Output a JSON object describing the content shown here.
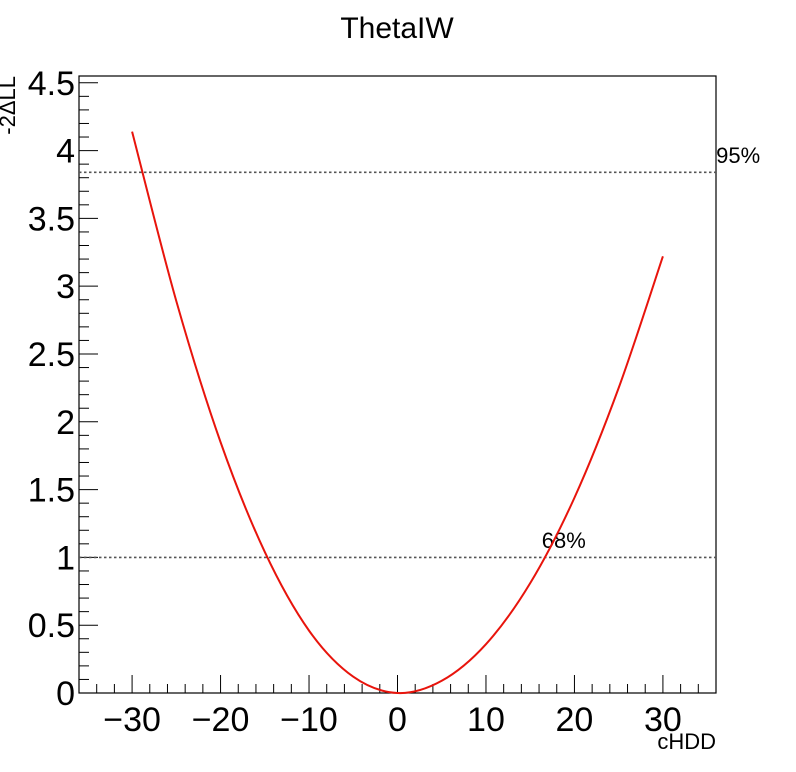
{
  "chart_data": {
    "type": "line",
    "title": "ThetaIW",
    "xlabel": "cHDD",
    "ylabel": "-2ΔLL",
    "xlim": [
      -36,
      36
    ],
    "ylim": [
      0,
      4.55
    ],
    "x_ticks": [
      -30,
      -20,
      -10,
      0,
      10,
      20,
      30
    ],
    "x_tick_labels": [
      "−30",
      "−20",
      "−10",
      "0",
      "10",
      "20",
      "30"
    ],
    "y_ticks": [
      0,
      0.5,
      1,
      1.5,
      2,
      2.5,
      3,
      3.5,
      4,
      4.5
    ],
    "y_tick_labels": [
      "0",
      "0.5",
      "1",
      "1.5",
      "2",
      "2.5",
      "3",
      "3.5",
      "4",
      "4.5"
    ],
    "grid": false,
    "series": [
      {
        "color": "#e8140c",
        "x": [
          -30,
          -25,
          -20,
          -15,
          -10,
          -5,
          0,
          5,
          10,
          15,
          20,
          25,
          30
        ],
        "y": [
          4.14,
          2.89,
          1.85,
          1.04,
          0.46,
          0.12,
          0.0,
          0.09,
          0.36,
          0.81,
          1.44,
          2.25,
          3.22
        ]
      }
    ],
    "reference_lines": [
      {
        "y": 1.0,
        "label": "68%",
        "label_x": 18.8,
        "label_y": 1.07,
        "style": "dotted",
        "color": "#555555"
      },
      {
        "y": 3.84,
        "label": "95%",
        "label_x": 38.5,
        "label_y": 3.91,
        "style": "dotted",
        "color": "#555555"
      }
    ]
  }
}
